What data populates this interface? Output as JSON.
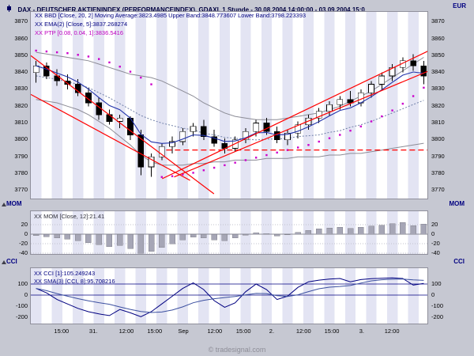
{
  "header": {
    "title": "DAX - DEUTSCHER AKTIENINDEX (PERFORMANCEINDEX), GDAXI, 1 Stunde - 30.08.2004 14:00:00 - 03.09.2004 15:0",
    "currency": "EUR"
  },
  "legends": {
    "bbd": "XX BBD [Close, 20, 2] Moving Average:3823.4985 Upper Band:3848.773607 Lower Band:3798.223393",
    "ema": "XX EMA(2) [Close, 5]:3837.268274",
    "ptp": "XX PTP [0.08, 0.04, 1]:3836.5416"
  },
  "panels": {
    "mom": {
      "name_left": "MOM",
      "name_right": "MOM",
      "legend": "XX MOM [Close, 12]:21.41",
      "axis": [
        20,
        0,
        -20,
        -40
      ]
    },
    "cci": {
      "name_left": "CCI",
      "name_right": "CCI",
      "legend_cci": "XX CCI [1]:105.249243",
      "legend_sma": "XX SMA(3) [CCI, 8]:95.708216",
      "axis": [
        100,
        0,
        -100,
        -200
      ]
    }
  },
  "price_axis": [
    3870,
    3860,
    3850,
    3840,
    3830,
    3820,
    3810,
    3800,
    3790,
    3780,
    3770
  ],
  "time_axis": [
    {
      "label": "15:00",
      "pos": 0.079
    },
    {
      "label": "31.",
      "pos": 0.159
    },
    {
      "label": "12:00",
      "pos": 0.242
    },
    {
      "label": "15:00",
      "pos": 0.313
    },
    {
      "label": "Sep",
      "pos": 0.385
    },
    {
      "label": "12:00",
      "pos": 0.464
    },
    {
      "label": "15:00",
      "pos": 0.536
    },
    {
      "label": "2.",
      "pos": 0.607
    },
    {
      "label": "12:00",
      "pos": 0.687
    },
    {
      "label": "15:00",
      "pos": 0.758
    },
    {
      "label": "3.",
      "pos": 0.833
    },
    {
      "label": "12:00",
      "pos": 0.909
    }
  ],
  "watermark": "© tradesignal.com",
  "chart_data": {
    "type": "candlestick",
    "title": "DAX - DEUTSCHER AKTIENINDEX (PERFORMANCEINDEX)",
    "symbol": "GDAXI",
    "interval": "1 Stunde",
    "range": "30.08.2004 14:00:00 - 03.09.2004 15:0",
    "price_range": [
      3770,
      3870
    ],
    "candles": {
      "open": [
        3840,
        3844,
        3838,
        3835,
        3833,
        3828,
        3822,
        3815,
        3811,
        3813,
        3803,
        3784,
        3790,
        3796,
        3799,
        3805,
        3808,
        3802,
        3798,
        3795,
        3800,
        3805,
        3810,
        3805,
        3800,
        3804,
        3809,
        3813,
        3817,
        3821,
        3824,
        3822,
        3828,
        3833,
        3838,
        3843,
        3847,
        3844
      ],
      "high": [
        3847,
        3846,
        3842,
        3839,
        3836,
        3831,
        3825,
        3818,
        3815,
        3814,
        3806,
        3792,
        3798,
        3802,
        3807,
        3810,
        3812,
        3806,
        3801,
        3802,
        3807,
        3812,
        3813,
        3808,
        3806,
        3811,
        3815,
        3819,
        3823,
        3826,
        3829,
        3830,
        3835,
        3840,
        3845,
        3849,
        3851,
        3847
      ],
      "low": [
        3834,
        3836,
        3832,
        3830,
        3826,
        3820,
        3812,
        3809,
        3807,
        3800,
        3779,
        3778,
        3788,
        3792,
        3797,
        3802,
        3800,
        3796,
        3792,
        3793,
        3798,
        3802,
        3803,
        3798,
        3797,
        3801,
        3806,
        3810,
        3814,
        3818,
        3820,
        3820,
        3825,
        3830,
        3835,
        3840,
        3841,
        3833
      ],
      "close": [
        3844,
        3838,
        3835,
        3833,
        3828,
        3822,
        3815,
        3811,
        3813,
        3803,
        3784,
        3790,
        3796,
        3799,
        3805,
        3808,
        3802,
        3798,
        3795,
        3800,
        3805,
        3810,
        3805,
        3800,
        3804,
        3809,
        3813,
        3817,
        3821,
        3824,
        3822,
        3828,
        3833,
        3838,
        3843,
        3847,
        3844,
        3838
      ]
    },
    "bollinger": {
      "period": 20,
      "deviation": 2,
      "moving_average_last": 3823.4985,
      "upper_last": 3848.773607,
      "lower_last": 3798.223393,
      "upper": [
        3852,
        3851,
        3850,
        3849,
        3848,
        3847,
        3845,
        3843,
        3841,
        3839,
        3838,
        3837,
        3835,
        3832,
        3829,
        3826,
        3822,
        3819,
        3816,
        3814,
        3813,
        3812,
        3812,
        3812,
        3813,
        3814,
        3815,
        3816,
        3818,
        3820,
        3823,
        3826,
        3829,
        3833,
        3837,
        3841,
        3845,
        3849
      ],
      "lower": [
        3824,
        3823,
        3822,
        3820,
        3818,
        3815,
        3811,
        3807,
        3802,
        3797,
        3791,
        3787,
        3785,
        3785,
        3785,
        3786,
        3786,
        3787,
        3787,
        3788,
        3788,
        3788,
        3789,
        3789,
        3789,
        3790,
        3790,
        3790,
        3791,
        3791,
        3792,
        3792,
        3793,
        3794,
        3795,
        3796,
        3797,
        3798
      ]
    },
    "ema": {
      "period": 5,
      "last": 3837.268274
    },
    "ptp": {
      "params": [
        0.08,
        0.04,
        1
      ],
      "last": 3836.5416,
      "dots": [
        3853,
        3852.5,
        3852,
        3851.5,
        3850.5,
        3849.5,
        3848,
        3846,
        3843.5,
        3840.5,
        3837,
        3833,
        3778,
        3778.5,
        3779.5,
        3780.5,
        3782,
        3783.5,
        3785,
        3786.5,
        3788,
        3789.5,
        3791,
        3792.5,
        3794,
        3795.5,
        3797,
        3799,
        3801,
        3803,
        3805.5,
        3808,
        3811,
        3814,
        3817.5,
        3821.5,
        3826,
        3831
      ]
    },
    "mom": {
      "period": 12,
      "last": 21.41,
      "values": [
        -3,
        -5,
        -8,
        -10,
        -14,
        -18,
        -22,
        -26,
        -24,
        -30,
        -40,
        -36,
        -28,
        -20,
        -12,
        -6,
        -8,
        -12,
        -14,
        -8,
        -2,
        3,
        1,
        -4,
        -1,
        4,
        8,
        11,
        13,
        15,
        12,
        15,
        17,
        19,
        22,
        25,
        18,
        21.41
      ]
    },
    "cci": {
      "period": 1,
      "last": 105.249243,
      "sma_period": 8,
      "sma_last": 95.708216,
      "values": [
        60,
        20,
        -40,
        -80,
        -120,
        -150,
        -170,
        -185,
        -130,
        -160,
        -195,
        -150,
        -80,
        -10,
        60,
        110,
        50,
        -50,
        -110,
        -70,
        30,
        100,
        50,
        -40,
        -10,
        70,
        120,
        135,
        145,
        150,
        120,
        140,
        148,
        152,
        155,
        150,
        90,
        105.25
      ]
    },
    "trendlines": [
      {
        "x1": 0.0,
        "p1": 3850,
        "x2": 0.46,
        "p2": 3768,
        "dash": false
      },
      {
        "x1": 0.0,
        "p1": 3827,
        "x2": 0.4,
        "p2": 3776,
        "dash": false
      },
      {
        "x1": 0.33,
        "p1": 3777,
        "x2": 1.0,
        "p2": 3853,
        "dash": false
      },
      {
        "x1": 0.36,
        "p1": 3778,
        "x2": 1.0,
        "p2": 3841,
        "dash": false
      },
      {
        "x1": 0.34,
        "p1": 3794,
        "x2": 1.0,
        "p2": 3794,
        "dash": true
      }
    ],
    "colors": {
      "up_candle": "#ffffff",
      "down_candle": "#000000",
      "band": "#8c8c96",
      "band_mid": "#7080a8",
      "ema": "#2233aa",
      "ptp": "#cc00cc",
      "trendline": "#ff0000",
      "mom_bar": "#a6a6b6",
      "cci_line": "#000080",
      "cci_sma": "#3c50a0",
      "stripe": "#e3e4f3"
    }
  }
}
